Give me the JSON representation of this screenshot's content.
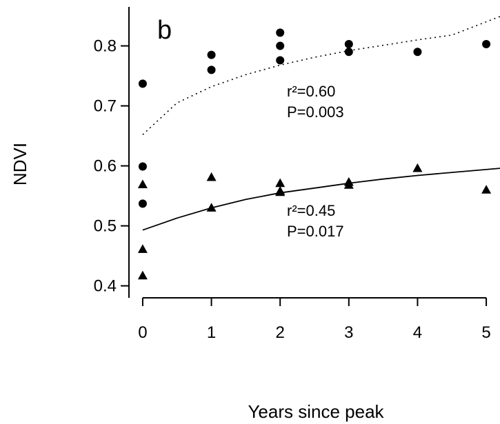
{
  "chart_data": {
    "type": "scatter",
    "panel_label": "b",
    "xlabel": "Years since peak",
    "ylabel": "NDVI",
    "xlim": [
      -0.2,
      5.2
    ],
    "ylim": [
      0.38,
      0.865
    ],
    "x_ticks": [
      0,
      1,
      2,
      3,
      4,
      5
    ],
    "x_tick_labels": [
      "0",
      "1",
      "2",
      "3",
      "4",
      "5"
    ],
    "y_ticks": [
      0.4,
      0.5,
      0.6,
      0.7,
      0.8
    ],
    "y_tick_labels": [
      "0.4",
      "0.5",
      "0.6",
      "0.7",
      "0.8"
    ],
    "grid": false,
    "legend": "none",
    "series": [
      {
        "marker": "circle",
        "fit_line": "dotted",
        "fit_curve": [
          [
            0,
            0.652
          ],
          [
            0.5,
            0.705
          ],
          [
            1,
            0.732
          ],
          [
            1.5,
            0.752
          ],
          [
            2,
            0.768
          ],
          [
            2.5,
            0.781
          ],
          [
            3,
            0.792
          ],
          [
            3.5,
            0.801
          ],
          [
            4,
            0.81
          ],
          [
            4.5,
            0.818
          ],
          [
            5.2,
            0.849
          ]
        ],
        "points": [
          {
            "x": 0,
            "y": 0.737
          },
          {
            "x": 0,
            "y": 0.599
          },
          {
            "x": 0,
            "y": 0.537
          },
          {
            "x": 1,
            "y": 0.785
          },
          {
            "x": 1,
            "y": 0.76
          },
          {
            "x": 2,
            "y": 0.822
          },
          {
            "x": 2,
            "y": 0.8
          },
          {
            "x": 2,
            "y": 0.776
          },
          {
            "x": 3,
            "y": 0.803
          },
          {
            "x": 3,
            "y": 0.79
          },
          {
            "x": 4,
            "y": 0.79
          },
          {
            "x": 5,
            "y": 0.803
          }
        ],
        "stats": {
          "r2": "r²=0.60",
          "p": "P=0.003"
        }
      },
      {
        "marker": "triangle",
        "fit_line": "solid",
        "fit_curve": [
          [
            0,
            0.493
          ],
          [
            0.5,
            0.513
          ],
          [
            1,
            0.53
          ],
          [
            1.5,
            0.544
          ],
          [
            2,
            0.555
          ],
          [
            2.5,
            0.563
          ],
          [
            3,
            0.571
          ],
          [
            3.5,
            0.578
          ],
          [
            4,
            0.584
          ],
          [
            4.5,
            0.589
          ],
          [
            5.2,
            0.596
          ]
        ],
        "points": [
          {
            "x": 0,
            "y": 0.569
          },
          {
            "x": 0,
            "y": 0.461
          },
          {
            "x": 0,
            "y": 0.417
          },
          {
            "x": 1,
            "y": 0.581
          },
          {
            "x": 1,
            "y": 0.53
          },
          {
            "x": 2,
            "y": 0.571
          },
          {
            "x": 2,
            "y": 0.558
          },
          {
            "x": 2,
            "y": 0.556
          },
          {
            "x": 3,
            "y": 0.573
          },
          {
            "x": 3,
            "y": 0.568
          },
          {
            "x": 4,
            "y": 0.596
          },
          {
            "x": 5,
            "y": 0.56
          }
        ],
        "stats": {
          "r2": "r²=0.45",
          "p": "P=0.017"
        }
      }
    ]
  }
}
